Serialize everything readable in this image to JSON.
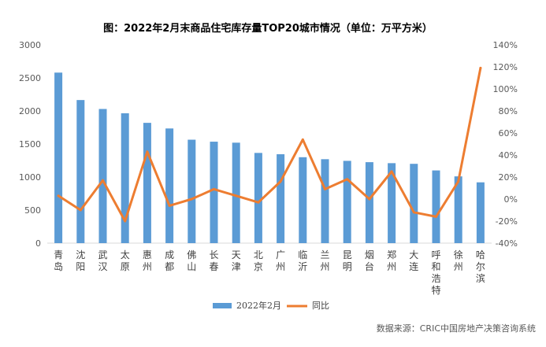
{
  "chart_data": {
    "type": "bar",
    "title": "图：2022年2月末商品住宅库存量TOP20城市情况（单位：万平方米）",
    "categories": [
      "青岛",
      "沈阳",
      "武汉",
      "太原",
      "惠州",
      "成都",
      "佛山",
      "长春",
      "天津",
      "北京",
      "广州",
      "临沂",
      "兰州",
      "昆明",
      "烟台",
      "郑州",
      "大连",
      "呼和浩特",
      "徐州",
      "哈尔滨"
    ],
    "series": [
      {
        "name": "2022年2月",
        "type": "bar",
        "axis": "left",
        "color": "#5B9BD5",
        "values": [
          2580,
          2165,
          2030,
          1965,
          1820,
          1735,
          1565,
          1535,
          1520,
          1365,
          1345,
          1300,
          1270,
          1245,
          1225,
          1210,
          1200,
          1100,
          1010,
          920
        ]
      },
      {
        "name": "同比",
        "type": "line",
        "axis": "right",
        "unit": "%",
        "color": "#ED7D31",
        "values": [
          3,
          -10,
          17,
          -20,
          43,
          -6,
          0,
          9,
          3,
          -3,
          16,
          54,
          9,
          18,
          0,
          25,
          -12,
          -16,
          16,
          119
        ]
      }
    ],
    "y_left": {
      "min": 0,
      "max": 3000,
      "step": 500,
      "ticks": [
        "0",
        "500",
        "1000",
        "1500",
        "2000",
        "2500",
        "3000"
      ]
    },
    "y_right": {
      "min": -40,
      "max": 140,
      "step": 20,
      "ticks": [
        "-40%",
        "-20%",
        "0%",
        "20%",
        "40%",
        "60%",
        "80%",
        "100%",
        "120%",
        "140%"
      ]
    },
    "grid": false,
    "legend": {
      "position": "bottom",
      "items": [
        "2022年2月",
        "同比"
      ]
    },
    "source": "数据来源：CRIC中国房地产决策咨询系统"
  }
}
